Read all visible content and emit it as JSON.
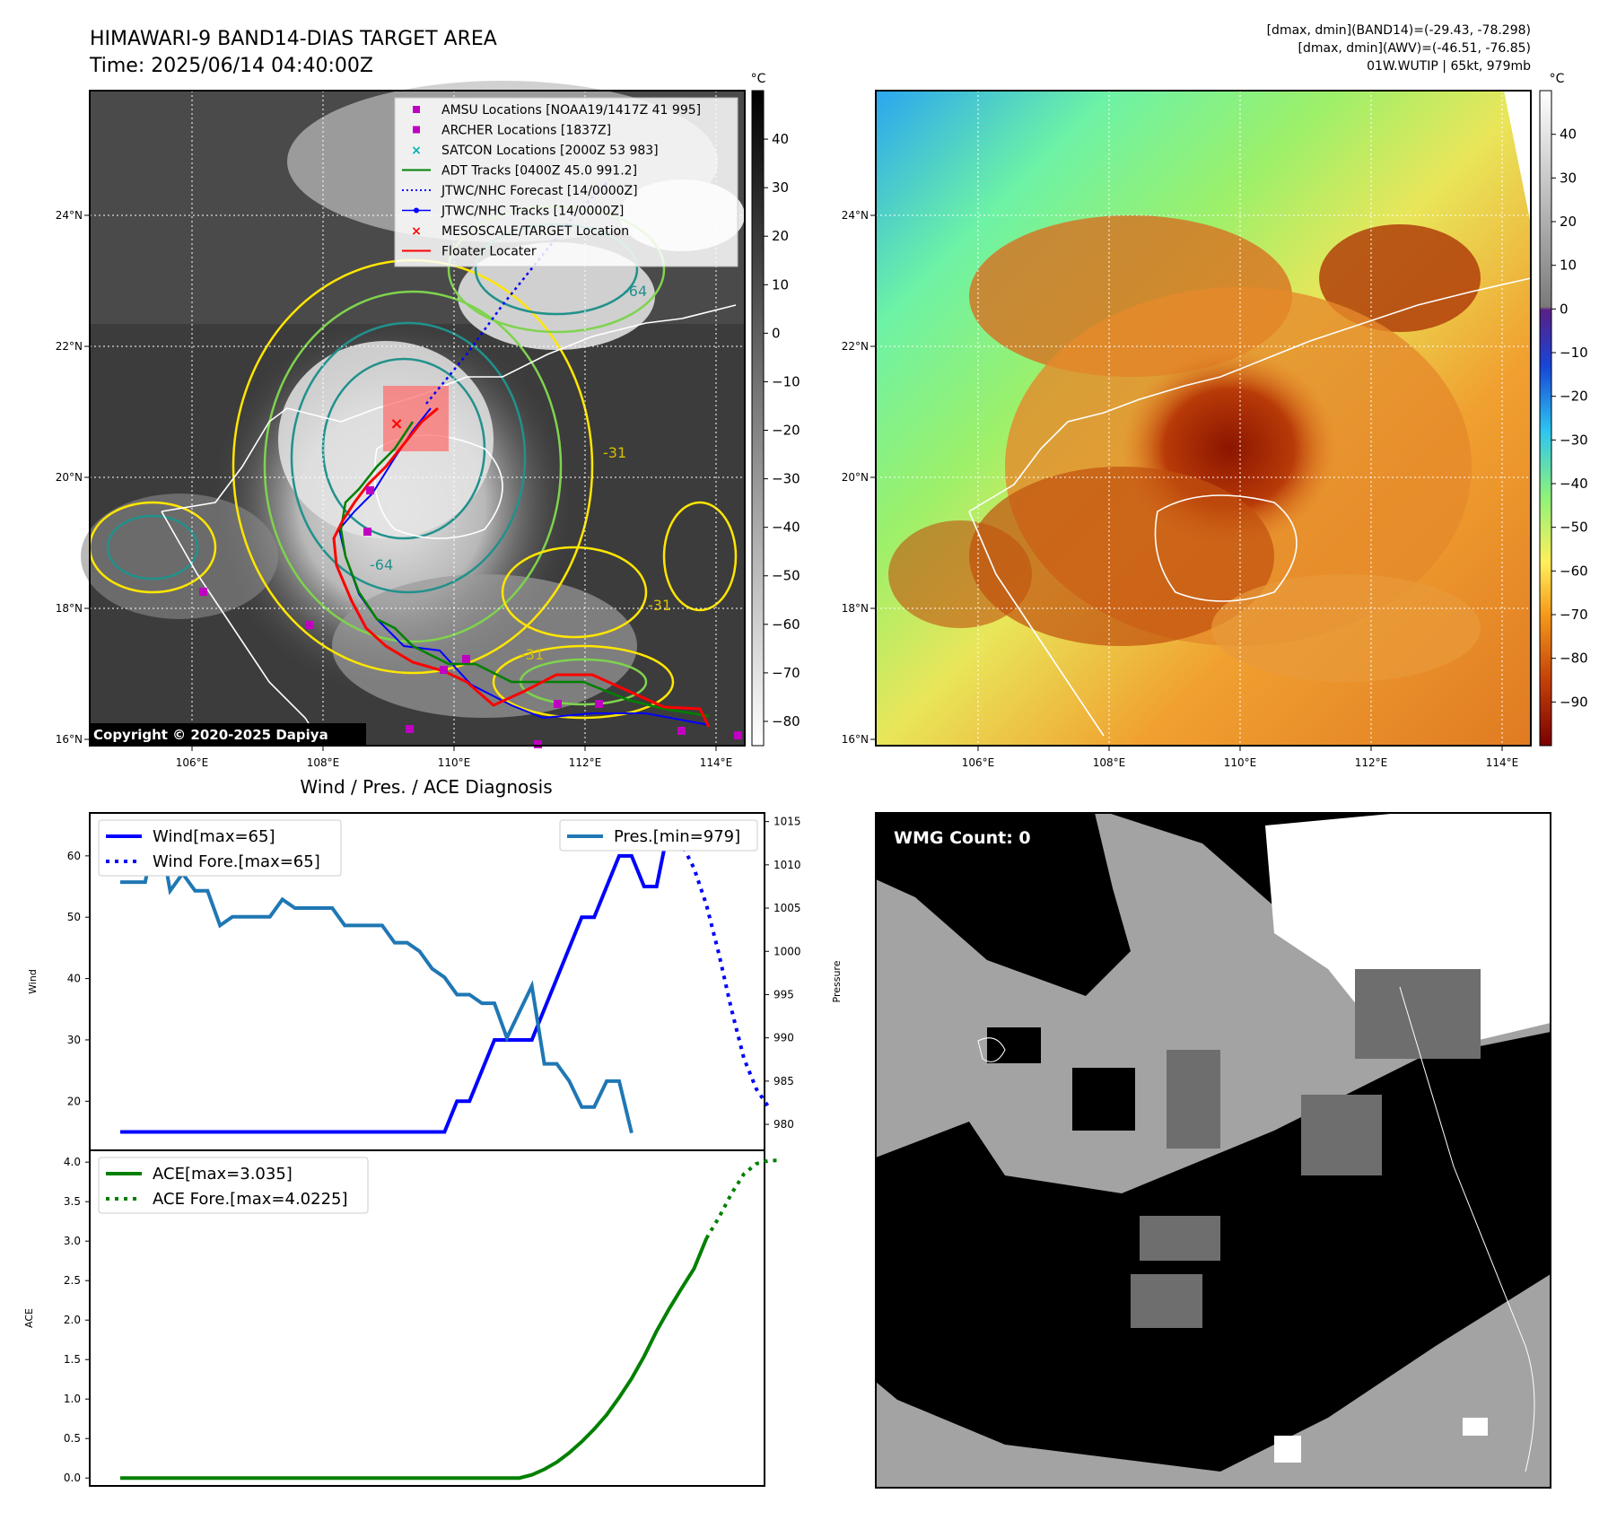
{
  "header": {
    "title_line1": "HIMAWARI-9 BAND14-DIAS TARGET AREA",
    "title_line2": "Time: 2025/06/14 04:40:00Z",
    "info_line1": "[dmax, dmin](BAND14)=(-29.43, -78.298)",
    "info_line2": "[dmax, dmin](AWV)=(-46.51, -76.85)",
    "info_line3": "01W.WUTIP | 65kt, 979mb"
  },
  "map": {
    "lon_ticks": [
      "106°E",
      "108°E",
      "110°E",
      "112°E",
      "114°E"
    ],
    "lat_ticks": [
      "24°N",
      "22°N",
      "20°N",
      "18°N",
      "16°N"
    ],
    "copyright": "Copyright © 2020-2025 Dapiya",
    "contour_labels": [
      "-64",
      "-64",
      "-31",
      "-31",
      "-31"
    ],
    "legend": [
      {
        "label": "AMSU Locations [NOAA19/1417Z 41 995]",
        "color": "#c000c0",
        "marker": "square"
      },
      {
        "label": "ARCHER Locations [1837Z]",
        "color": "#c000c0",
        "marker": "square"
      },
      {
        "label": "SATCON Locations [2000Z 53 983]",
        "color": "#00b0b0",
        "marker": "x"
      },
      {
        "label": "ADT Tracks [0400Z 45.0 991.2]",
        "color": "#008000",
        "marker": "line"
      },
      {
        "label": "JTWC/NHC Forecast [14/0000Z]",
        "color": "#0000ff",
        "marker": "dotted"
      },
      {
        "label": "JTWC/NHC Tracks [14/0000Z]",
        "color": "#0000ff",
        "marker": "line-dot"
      },
      {
        "label": "MESOSCALE/TARGET Location",
        "color": "#ff0000",
        "marker": "x"
      },
      {
        "label": "Floater Locater",
        "color": "#ff0000",
        "marker": "line"
      }
    ]
  },
  "colorbars": {
    "unit": "°C",
    "left_ticks": [
      "40",
      "30",
      "20",
      "10",
      "0",
      "−10",
      "−20",
      "−30",
      "−40",
      "−50",
      "−60",
      "−70",
      "−80"
    ],
    "right_ticks": [
      "40",
      "30",
      "20",
      "10",
      "0",
      "−10",
      "−20",
      "−30",
      "−40",
      "−50",
      "−60",
      "−70",
      "−80",
      "−90"
    ],
    "left_range": [
      -85,
      50
    ],
    "right_range": [
      -100,
      50
    ]
  },
  "wmg": {
    "count_label": "WMG Count: 0"
  },
  "colors": {
    "wind": "#0000ff",
    "pressure": "#1f77b4",
    "ace": "#008000",
    "wv_contour_yellow": "#ffe600",
    "wv_contour_green": "#7fd34e",
    "wv_contour_teal": "#21918c",
    "floater": "#ff0000"
  },
  "chart_data": [
    {
      "type": "line",
      "title": "Wind / Pres. / ACE Diagnosis",
      "ylabel": "Wind",
      "ylabel_right": "Pressure",
      "ylim": [
        12,
        67
      ],
      "ylim_right": [
        977,
        1016
      ],
      "y_ticks": [
        "20",
        "30",
        "40",
        "50",
        "60"
      ],
      "y_ticks_right": [
        "980",
        "985",
        "990",
        "995",
        "1000",
        "1005",
        "1010",
        "1015"
      ],
      "series": [
        {
          "name": "Wind[max=65]",
          "axis": "left",
          "style": "solid",
          "values": [
            15,
            15,
            15,
            15,
            15,
            15,
            15,
            15,
            15,
            15,
            15,
            15,
            15,
            15,
            15,
            15,
            15,
            15,
            15,
            15,
            15,
            15,
            15,
            15,
            15,
            15,
            15,
            20,
            20,
            25,
            30,
            30,
            30,
            30,
            35,
            40,
            45,
            50,
            50,
            55,
            60,
            60,
            55,
            55,
            65
          ]
        },
        {
          "name": "Wind Fore.[max=65]",
          "axis": "left",
          "style": "dotted",
          "x_start": 44,
          "values": [
            65,
            62,
            58,
            52,
            44,
            35,
            27,
            22,
            19
          ]
        },
        {
          "name": "Pres.[min=979]",
          "axis": "right",
          "style": "solid",
          "values": [
            1008,
            1008,
            1008,
            1015,
            1007,
            1009,
            1007,
            1007,
            1003,
            1004,
            1004,
            1004,
            1004,
            1006,
            1005,
            1005,
            1005,
            1005,
            1003,
            1003,
            1003,
            1003,
            1001,
            1001,
            1000,
            998,
            997,
            995,
            995,
            994,
            994,
            990,
            993,
            996,
            987,
            987,
            985,
            982,
            982,
            985,
            985,
            979
          ]
        }
      ]
    },
    {
      "type": "line",
      "ylabel": "ACE",
      "ylim": [
        -0.1,
        4.15
      ],
      "y_ticks": [
        "0.0",
        "0.5",
        "1.0",
        "1.5",
        "2.0",
        "2.5",
        "3.0",
        "3.5",
        "4.0"
      ],
      "series": [
        {
          "name": "ACE[max=3.035]",
          "style": "solid",
          "values": [
            0,
            0,
            0,
            0,
            0,
            0,
            0,
            0,
            0,
            0,
            0,
            0,
            0,
            0,
            0,
            0,
            0,
            0,
            0,
            0,
            0,
            0,
            0,
            0,
            0,
            0,
            0,
            0,
            0,
            0,
            0,
            0,
            0,
            0.04,
            0.11,
            0.2,
            0.32,
            0.46,
            0.62,
            0.8,
            1.02,
            1.26,
            1.54,
            1.86,
            2.14,
            2.4,
            2.65,
            3.035
          ]
        },
        {
          "name": "ACE Fore.[max=4.0225]",
          "style": "dotted",
          "x_start": 47,
          "values": [
            3.035,
            3.3,
            3.6,
            3.85,
            3.98,
            4.02,
            4.0225
          ]
        }
      ]
    }
  ]
}
